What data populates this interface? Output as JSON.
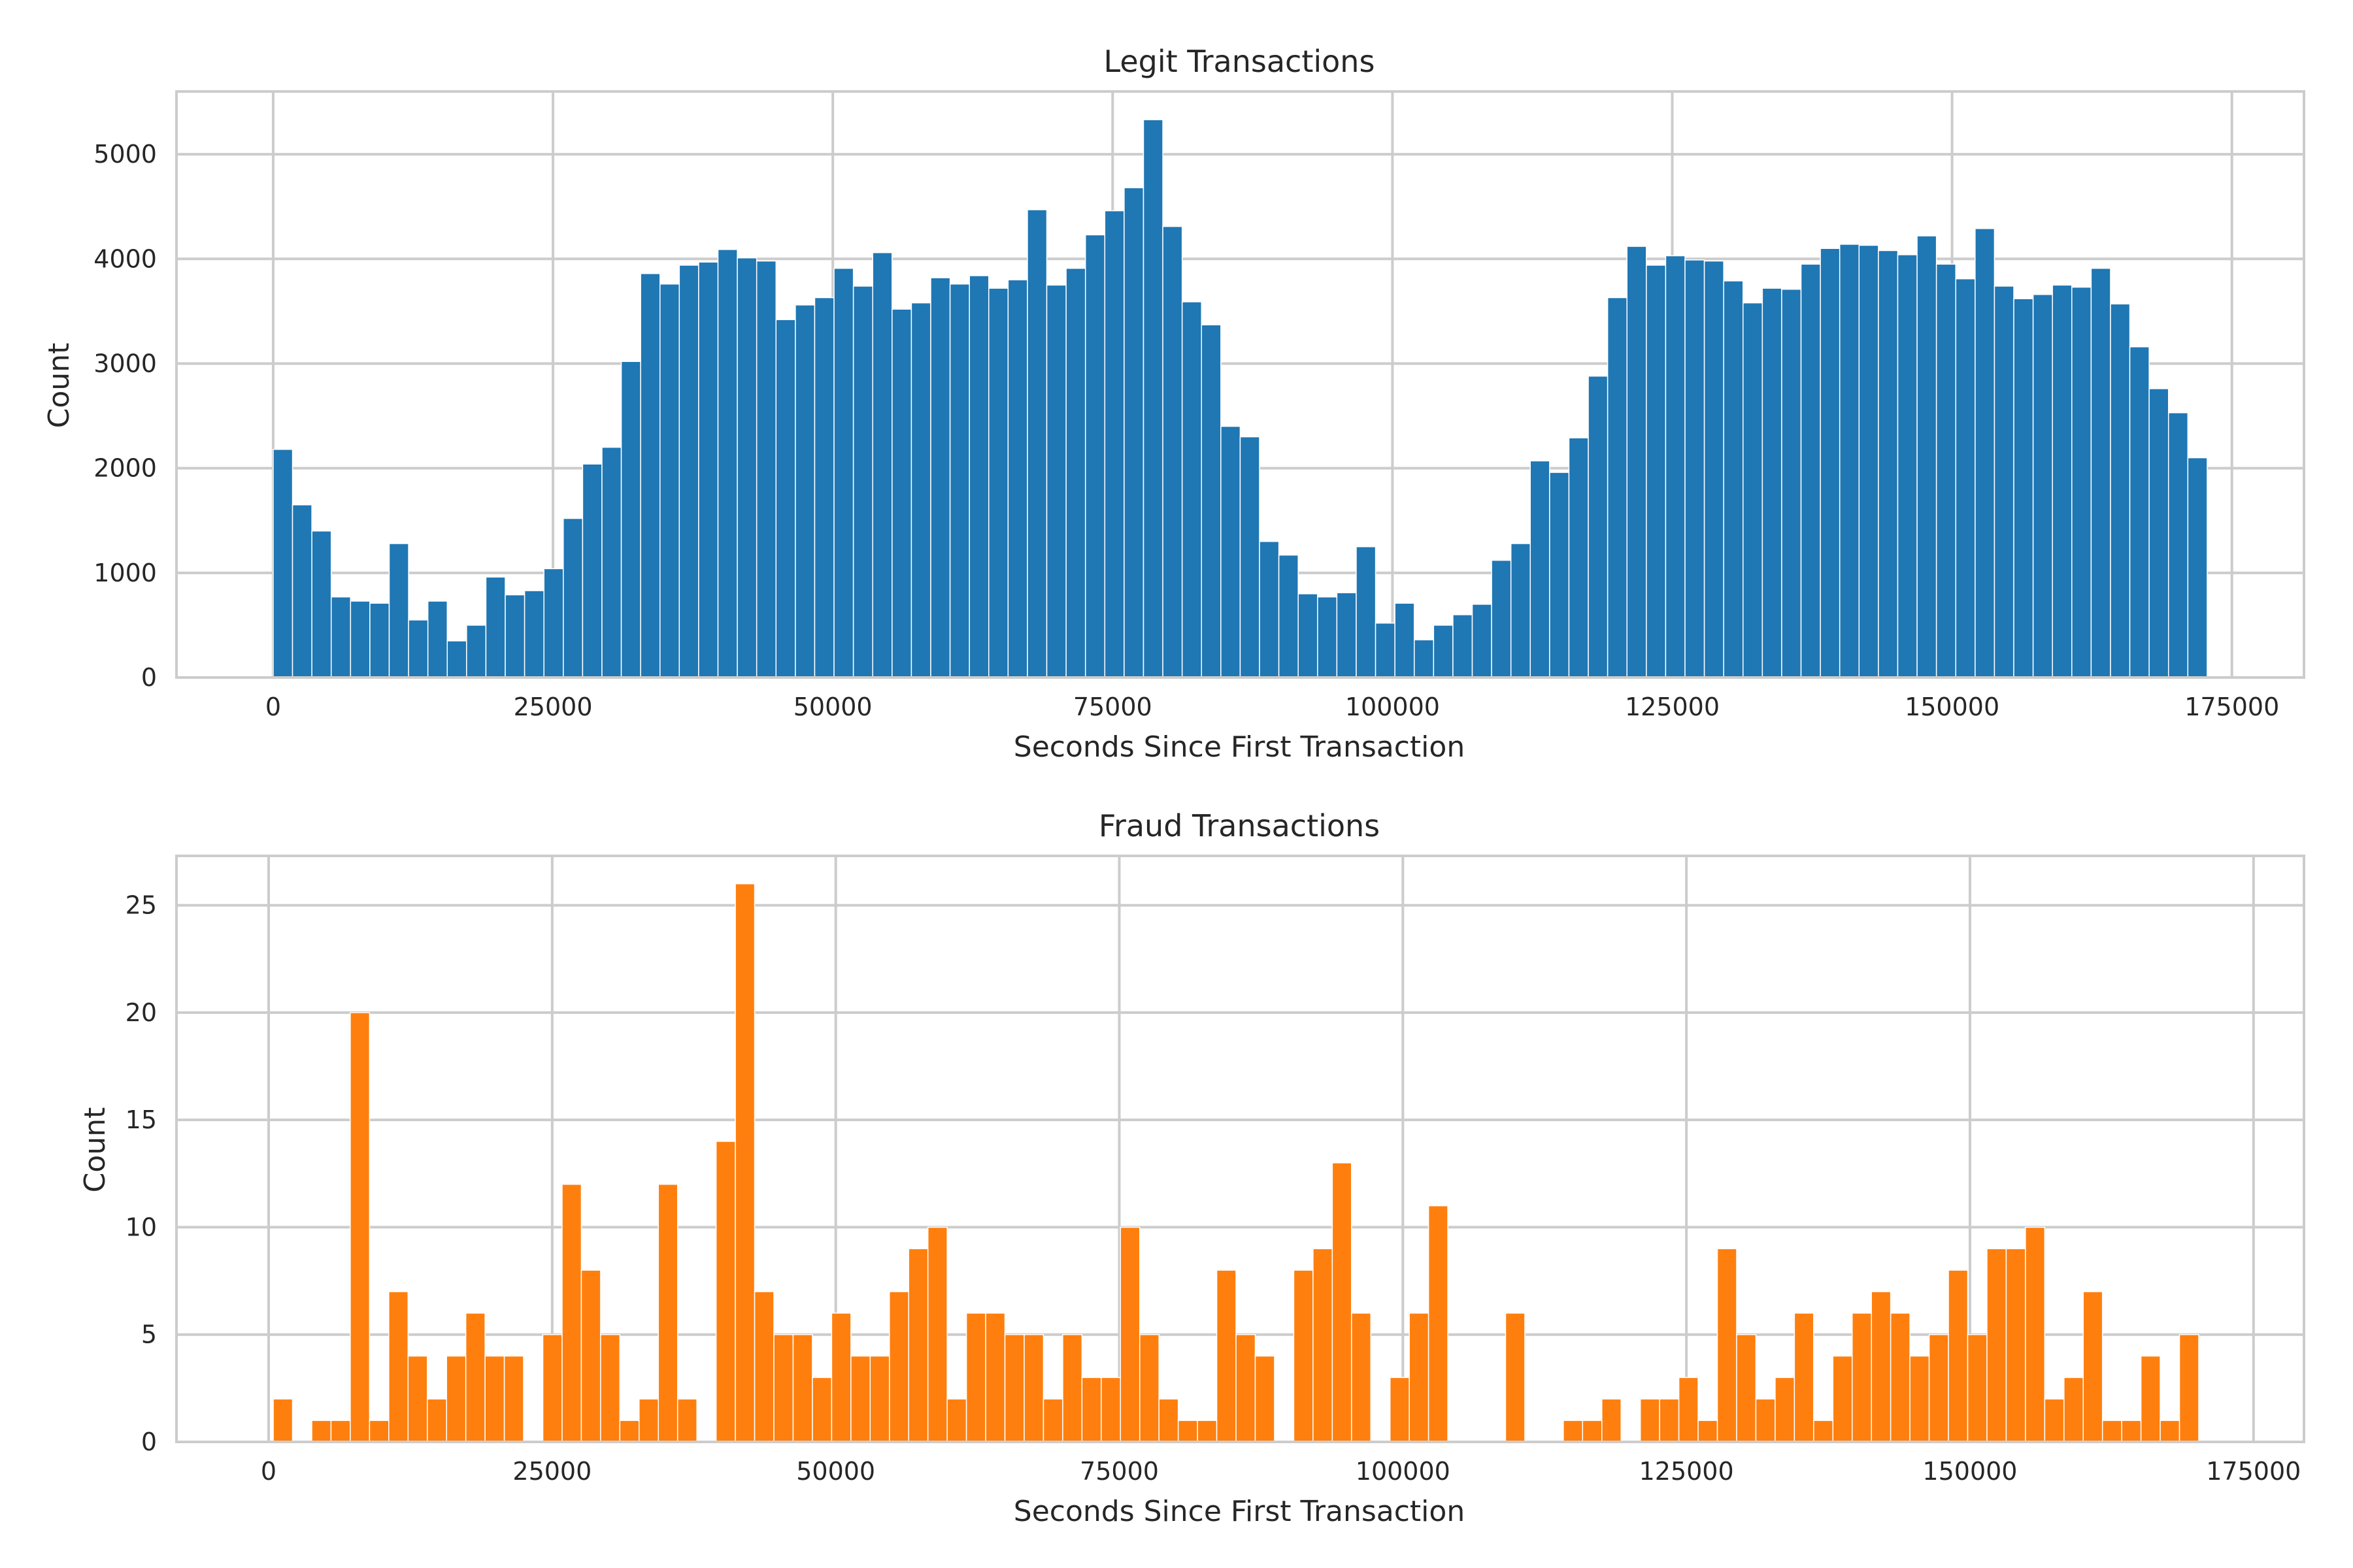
{
  "chart_data": [
    {
      "type": "bar",
      "title": "Legit Transactions",
      "xlabel": "Seconds Since First Transaction",
      "ylabel": "Count",
      "color": "#1f77b4",
      "bin_start": 0,
      "bin_width": 1727.92,
      "xlim": [
        -8640,
        181440
      ],
      "ylim": [
        0,
        5600
      ],
      "xticks": [
        0,
        25000,
        50000,
        75000,
        100000,
        125000,
        150000,
        175000
      ],
      "yticks": [
        0,
        1000,
        2000,
        3000,
        4000,
        5000
      ],
      "values": [
        2180,
        1650,
        1400,
        770,
        730,
        710,
        1280,
        550,
        730,
        350,
        500,
        960,
        790,
        830,
        1040,
        1520,
        2040,
        2200,
        3020,
        3860,
        3760,
        3940,
        3970,
        4090,
        4010,
        3980,
        3420,
        3560,
        3630,
        3910,
        3740,
        4060,
        3520,
        3580,
        3820,
        3760,
        3840,
        3720,
        3800,
        4470,
        3750,
        3910,
        4230,
        4460,
        4680,
        5330,
        4310,
        3590,
        3370,
        2400,
        2300,
        1300,
        1170,
        800,
        770,
        810,
        1250,
        520,
        710,
        360,
        500,
        600,
        700,
        1120,
        1280,
        2070,
        1960,
        2290,
        2880,
        3630,
        4120,
        3940,
        4030,
        3990,
        3980,
        3790,
        3580,
        3720,
        3710,
        3950,
        4100,
        4140,
        4130,
        4080,
        4040,
        4220,
        3950,
        3810,
        4290,
        3740,
        3620,
        3660,
        3750,
        3730,
        3910,
        3570,
        3160,
        2760,
        2530,
        2100
      ]
    },
    {
      "type": "bar",
      "title": "Fraud Transactions",
      "xlabel": "Seconds Since First Transaction",
      "ylabel": "Count",
      "color": "#ff7f0e",
      "bin_start": 406,
      "bin_width": 1697.66,
      "xlim": [
        -8127,
        179450
      ],
      "ylim": [
        0,
        27.3
      ],
      "xticks": [
        0,
        25000,
        50000,
        75000,
        100000,
        125000,
        150000,
        175000
      ],
      "yticks": [
        0,
        5,
        10,
        15,
        20,
        25
      ],
      "values": [
        2,
        0,
        1,
        1,
        20,
        1,
        7,
        4,
        2,
        4,
        6,
        4,
        4,
        0,
        5,
        12,
        8,
        5,
        1,
        2,
        12,
        2,
        0,
        14,
        26,
        7,
        5,
        5,
        3,
        6,
        4,
        4,
        7,
        9,
        10,
        2,
        6,
        6,
        5,
        5,
        2,
        5,
        3,
        3,
        10,
        5,
        2,
        1,
        1,
        8,
        5,
        4,
        0,
        8,
        9,
        13,
        6,
        0,
        3,
        6,
        11,
        0,
        0,
        0,
        6,
        0,
        0,
        1,
        1,
        2,
        0,
        2,
        2,
        3,
        1,
        9,
        5,
        2,
        3,
        6,
        1,
        4,
        6,
        7,
        6,
        4,
        5,
        8,
        5,
        9,
        9,
        10,
        2,
        3,
        7,
        1,
        1,
        4,
        1,
        5
      ]
    }
  ]
}
